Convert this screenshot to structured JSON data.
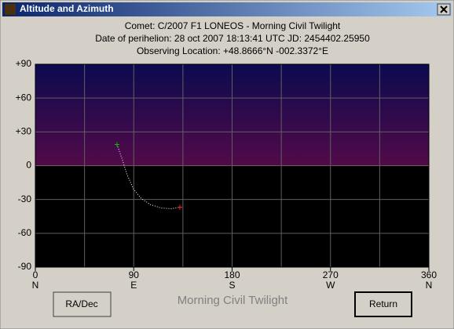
{
  "window": {
    "title": "Altitude and Azimuth"
  },
  "chart_data": {
    "type": "line",
    "title": [
      "Comet: C/2007 F1 LONEOS - Morning Civil Twilight",
      "Date of perihelion: 28 oct 2007 18:13:41 UTC  JD: 2454402.25950",
      "Observing Location: +48.8666°N  -002.3372°E"
    ],
    "x": [
      74.7,
      79.0,
      84.1,
      89.8,
      97.0,
      105.6,
      114.9,
      124.3,
      132.2
    ],
    "series": [
      {
        "color": "#ffffff",
        "values": [
          18.8,
          6.9,
          -8.3,
          -20.8,
          -29.2,
          -34.7,
          -37.5,
          -38.2,
          -36.8
        ]
      }
    ],
    "start_color": "#00c000",
    "end_color": "#ff2020",
    "xlim": [
      0,
      360
    ],
    "xticks": [
      0,
      90,
      180,
      270,
      360
    ],
    "x_directions": [
      "N",
      "E",
      "S",
      "W",
      "N"
    ],
    "xgrid": [
      45,
      90,
      135,
      180,
      225,
      270,
      315
    ],
    "ylim": [
      -90,
      90
    ],
    "yticks": [
      {
        "value": 90,
        "label": "+90"
      },
      {
        "value": 60,
        "label": "+60"
      },
      {
        "value": 30,
        "label": "+30"
      },
      0,
      -30,
      -60,
      -90
    ],
    "grid": true,
    "sky_top": "#0c0a50",
    "sky_horizon": "#520a48",
    "ground": "#000000"
  },
  "footer": "Morning Civil Twilight",
  "buttons": [
    "RA/Dec",
    "Return"
  ]
}
